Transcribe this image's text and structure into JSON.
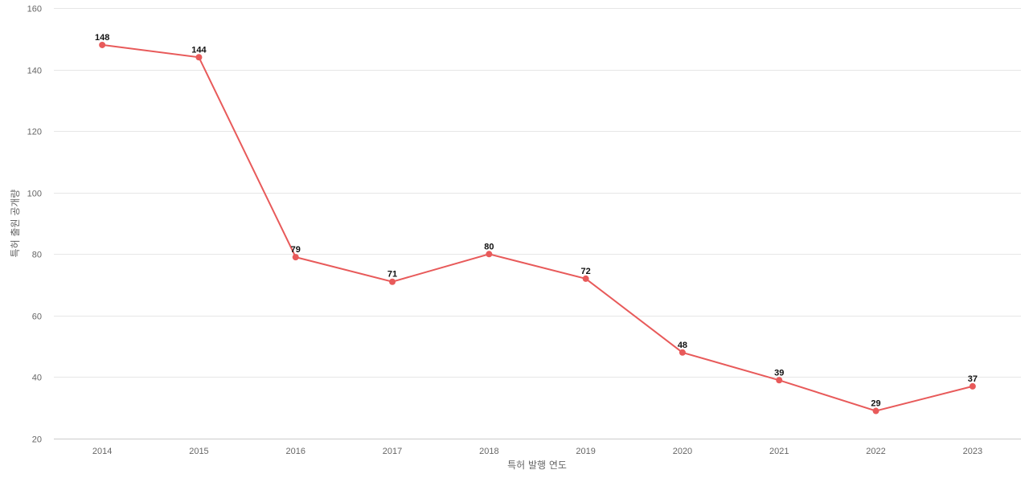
{
  "chart_data": {
    "type": "line",
    "title": "",
    "xlabel": "특허 발행 연도",
    "ylabel": "특허 출원 공개량",
    "categories": [
      "2014",
      "2015",
      "2016",
      "2017",
      "2018",
      "2019",
      "2020",
      "2021",
      "2022",
      "2023"
    ],
    "series": [
      {
        "values": [
          148,
          144,
          79,
          71,
          80,
          72,
          48,
          39,
          29,
          37
        ]
      }
    ],
    "ylim": [
      20,
      160
    ],
    "yticks": [
      20,
      40,
      60,
      80,
      100,
      120,
      140,
      160
    ],
    "grid": true,
    "data_labels": true,
    "line_color": "#e85a5a"
  }
}
